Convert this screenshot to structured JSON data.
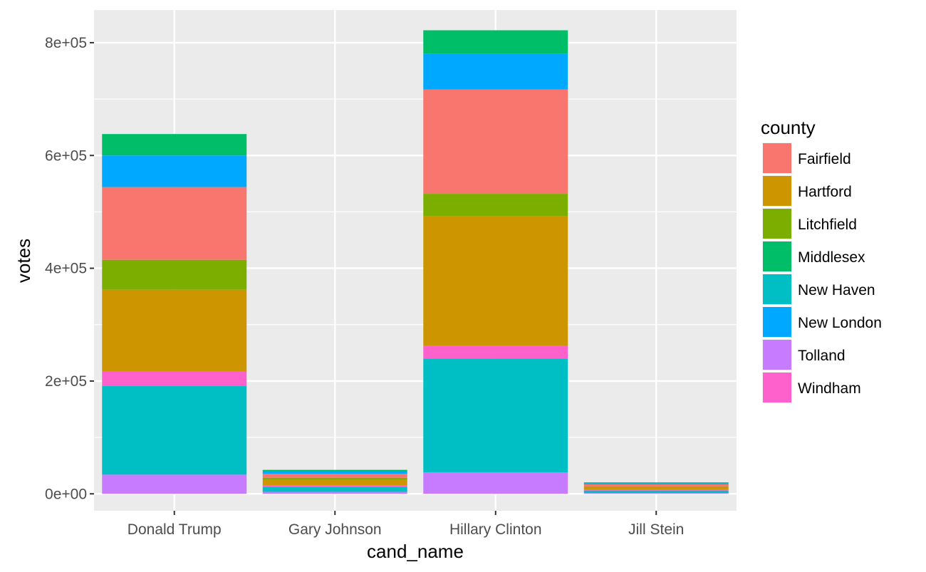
{
  "chart_data": {
    "type": "bar",
    "stacked": true,
    "xlabel": "cand_name",
    "ylabel": "votes",
    "ylim": [
      -30000,
      858000
    ],
    "yticks": [
      0,
      200000,
      400000,
      600000,
      800000
    ],
    "ytick_labels": [
      "0e+00",
      "2e+05",
      "4e+05",
      "6e+05",
      "8e+05"
    ],
    "categories": [
      "Donald Trump",
      "Gary Johnson",
      "Hillary Clinton",
      "Jill Stein"
    ],
    "grid": true,
    "legend": {
      "title": "county",
      "position": "right"
    },
    "stack_order_bottom_to_top": [
      "Tolland",
      "New Haven",
      "Windham",
      "Hartford",
      "Litchfield",
      "Fairfield",
      "New London",
      "Middlesex"
    ],
    "series": [
      {
        "name": "Fairfield",
        "color": "#F8766D",
        "values": [
          129000,
          7000,
          185000,
          3500
        ]
      },
      {
        "name": "Hartford",
        "color": "#CD9600",
        "values": [
          145000,
          9500,
          230000,
          5000
        ]
      },
      {
        "name": "Litchfield",
        "color": "#7CAE00",
        "values": [
          53000,
          4000,
          40000,
          1500
        ]
      },
      {
        "name": "Middlesex",
        "color": "#00BE67",
        "values": [
          38000,
          3000,
          42000,
          1500
        ]
      },
      {
        "name": "New Haven",
        "color": "#00BFC4",
        "values": [
          157000,
          9000,
          202000,
          4500
        ]
      },
      {
        "name": "New London",
        "color": "#00A9FF",
        "values": [
          56000,
          4000,
          63000,
          2000
        ]
      },
      {
        "name": "Tolland",
        "color": "#C77CFF",
        "values": [
          34000,
          3500,
          38000,
          1300
        ]
      },
      {
        "name": "Windham",
        "color": "#FF61CC",
        "values": [
          26000,
          2500,
          22000,
          1000
        ]
      }
    ]
  }
}
